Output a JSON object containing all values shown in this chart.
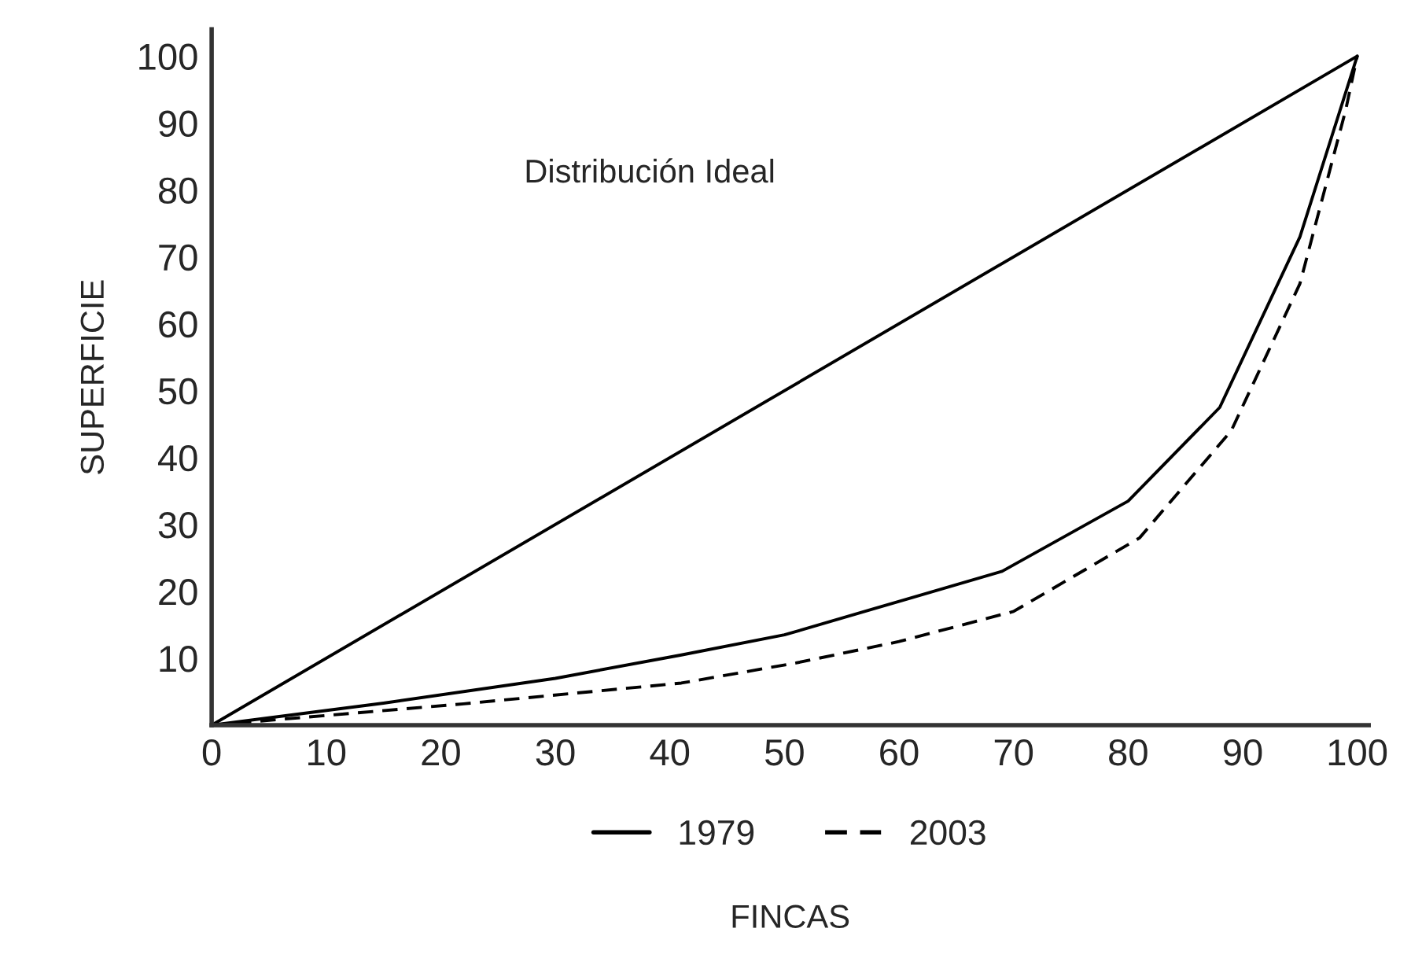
{
  "chart_data": {
    "type": "line",
    "xlabel": "FINCAS",
    "ylabel": "SUPERFICIE",
    "annotations": [
      "Distribución Ideal"
    ],
    "series": [
      {
        "color": "#000000",
        "line_style": "solid",
        "x": [
          0,
          100
        ],
        "values": [
          0,
          100
        ]
      },
      {
        "name": "1979",
        "color": "#000000",
        "line_style": "solid",
        "x": [
          0,
          15,
          30,
          41,
          50,
          58,
          69,
          80,
          88,
          95,
          100
        ],
        "values": [
          0,
          3.3,
          7,
          10.5,
          13.5,
          17.5,
          23,
          33.5,
          47.5,
          73,
          100
        ]
      },
      {
        "name": "2003",
        "color": "#000000",
        "line_style": "dashed",
        "x": [
          0,
          22,
          41,
          51,
          60,
          70,
          81,
          89,
          95,
          99,
          100
        ],
        "values": [
          0,
          3.2,
          6.3,
          9.3,
          12.5,
          17,
          28,
          44,
          66,
          92,
          100
        ]
      }
    ],
    "xlim": [
      0,
      101
    ],
    "ylim": [
      0,
      104
    ],
    "xticks": [
      0,
      10,
      20,
      30,
      40,
      50,
      60,
      70,
      80,
      90,
      100
    ],
    "yticks": [
      10,
      20,
      30,
      40,
      50,
      60,
      70,
      80,
      90,
      100
    ],
    "grid": false,
    "legend": "bottom"
  }
}
